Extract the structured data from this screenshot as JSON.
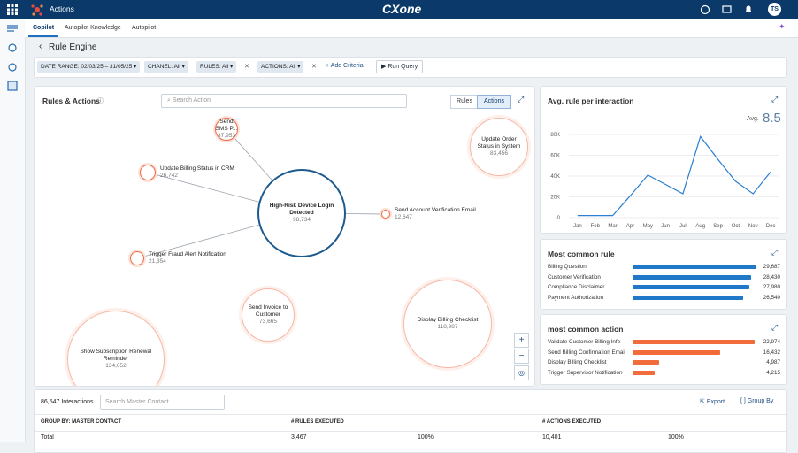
{
  "header": {
    "app": "Actions",
    "brand": "CXone",
    "user": "TS"
  },
  "tabs": [
    "Copilot",
    "Autopilot Knowledge",
    "Autopilot"
  ],
  "page_title": "Rule Engine",
  "filters": [
    {
      "label": "DATE RANGE:",
      "value": "02/03/25 – 31/05/25"
    },
    {
      "label": "CHANEL:",
      "value": "All"
    },
    {
      "label": "RULES:",
      "value": "All"
    },
    {
      "label": "ACTIONS:",
      "value": "All"
    }
  ],
  "add_criteria": "Add Criteria",
  "run_query": "Run Query",
  "graph": {
    "title": "Rules & Actions",
    "search_placeholder": "Search Action",
    "toggle": [
      "Rules",
      "Actions"
    ],
    "nodes": [
      {
        "label": "Send SMS P...",
        "value": "37,953"
      },
      {
        "label": "Update Billing Status in CRM",
        "value": "26,742"
      },
      {
        "label": "High-Risk Device Login Detected",
        "value": "98,734"
      },
      {
        "label": "Send Account Verification Email",
        "value": "12,647"
      },
      {
        "label": "Trigger Fraud Alert Notification",
        "value": "21,354"
      },
      {
        "label": "Update Order Status in System",
        "value": "83,456"
      },
      {
        "label": "Send Invoice to Customer",
        "value": "73,665"
      },
      {
        "label": "Display Billing Checklist",
        "value": "118,987"
      },
      {
        "label": "Show Subscription Renewal Reminder",
        "value": "134,052"
      }
    ]
  },
  "chart_data": [
    {
      "type": "line",
      "title": "Avg. rule per interaction",
      "avg_label": "Avg.",
      "avg_value": 8.5,
      "color": "#2a7fd0",
      "grid": true,
      "categories": [
        "Jan",
        "Feb",
        "Mar",
        "Apr",
        "May",
        "Jun",
        "Jul",
        "Aug",
        "Sep",
        "Oct",
        "Nov",
        "Dec"
      ],
      "values": [
        2000,
        2000,
        2000,
        21000,
        41000,
        32000,
        23000,
        78000,
        56000,
        35000,
        23000,
        44000
      ],
      "ylim": [
        0,
        80000
      ],
      "yticks": [
        {
          "value": 0,
          "label": "0"
        },
        {
          "value": 20000,
          "label": "20K"
        },
        {
          "value": 40000,
          "label": "40K"
        },
        {
          "value": 60000,
          "label": "60K"
        },
        {
          "value": 80000,
          "label": "80K"
        }
      ]
    },
    {
      "type": "hbar",
      "title": "Most common rule",
      "color": "#1f78c8",
      "xlim": [
        0,
        30000
      ],
      "categories": [
        "Billing Question",
        "Customer Verification",
        "Compliance Disclaimer",
        "Payment Authorization"
      ],
      "values": [
        29687,
        28430,
        27980,
        26540
      ],
      "value_labels": [
        "29,687",
        "28,430",
        "27,980",
        "26,540"
      ]
    },
    {
      "type": "hbar",
      "title": "most common action",
      "color": "#f26b3a",
      "xlim": [
        0,
        23500
      ],
      "categories": [
        "Validate Customer Billing Info",
        "Send Billing Confirmation Email",
        "Display Billing Checklist",
        "Trigger Supervisor Notification"
      ],
      "values": [
        22974,
        16432,
        4987,
        4215
      ],
      "value_labels": [
        "22,974",
        "16,432",
        "4,987",
        "4,215"
      ]
    }
  ],
  "table": {
    "count": "86,547 Interactions",
    "search_placeholder": "Search Master Contact",
    "export": "Export",
    "group_by": "Group By",
    "columns": [
      "GROUP BY: MASTER CONTACT",
      "# RULES EXECUTED",
      "# ACTIONS EXECUTED"
    ],
    "rows": [
      [
        "Total",
        "3,467",
        "100%",
        "10,401",
        "100%"
      ]
    ]
  }
}
